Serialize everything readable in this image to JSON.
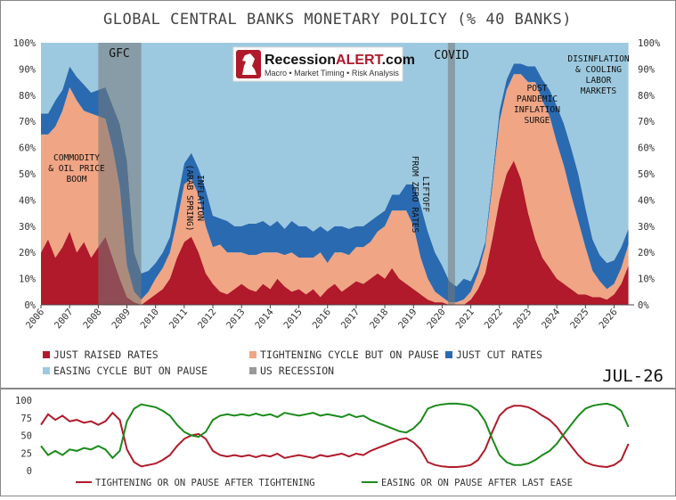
{
  "chart_data": [
    {
      "type": "area",
      "stacked": true,
      "title": "GLOBAL CENTRAL BANKS MONETARY POLICY (% 40 BANKS)",
      "ylim": [
        0,
        100
      ],
      "y_ticks": [
        "0%",
        "10%",
        "20%",
        "30%",
        "40%",
        "50%",
        "60%",
        "70%",
        "80%",
        "90%",
        "100%"
      ],
      "xlim": [
        2006,
        2026.7
      ],
      "x_ticks": [
        "2006",
        "2007",
        "2008",
        "2009",
        "2010",
        "2011",
        "2012",
        "2013",
        "2014",
        "2015",
        "2016",
        "2017",
        "2018",
        "2019",
        "2020",
        "2021",
        "2022",
        "2023",
        "2024",
        "2025",
        "2026"
      ],
      "x": [
        2006.0,
        2006.25,
        2006.5,
        2006.75,
        2007.0,
        2007.25,
        2007.5,
        2007.75,
        2008.0,
        2008.25,
        2008.5,
        2008.75,
        2009.0,
        2009.25,
        2009.5,
        2009.75,
        2010.0,
        2010.25,
        2010.5,
        2010.75,
        2011.0,
        2011.25,
        2011.5,
        2011.75,
        2012.0,
        2012.25,
        2012.5,
        2012.75,
        2013.0,
        2013.25,
        2013.5,
        2013.75,
        2014.0,
        2014.25,
        2014.5,
        2014.75,
        2015.0,
        2015.25,
        2015.5,
        2015.75,
        2016.0,
        2016.25,
        2016.5,
        2016.75,
        2017.0,
        2017.25,
        2017.5,
        2017.75,
        2018.0,
        2018.25,
        2018.5,
        2018.75,
        2019.0,
        2019.25,
        2019.5,
        2019.75,
        2020.0,
        2020.25,
        2020.5,
        2020.75,
        2021.0,
        2021.25,
        2021.5,
        2021.75,
        2022.0,
        2022.25,
        2022.5,
        2022.75,
        2023.0,
        2023.25,
        2023.5,
        2023.75,
        2024.0,
        2024.25,
        2024.5,
        2024.75,
        2025.0,
        2025.25,
        2025.5,
        2025.75,
        2026.0,
        2026.25,
        2026.5
      ],
      "series": [
        {
          "name": "JUST RAISED RATES",
          "color": "#b01a2a",
          "values": [
            20,
            25,
            18,
            22,
            28,
            20,
            24,
            18,
            22,
            26,
            18,
            10,
            3,
            1,
            0,
            2,
            4,
            6,
            10,
            18,
            24,
            26,
            20,
            12,
            8,
            5,
            4,
            6,
            8,
            6,
            5,
            8,
            6,
            10,
            7,
            5,
            6,
            4,
            6,
            3,
            6,
            8,
            5,
            7,
            9,
            8,
            10,
            12,
            10,
            14,
            10,
            8,
            6,
            4,
            2,
            1,
            1,
            0,
            0,
            0,
            2,
            6,
            12,
            25,
            40,
            50,
            55,
            48,
            35,
            25,
            18,
            14,
            10,
            8,
            6,
            4,
            4,
            3,
            3,
            2,
            4,
            8,
            15
          ]
        },
        {
          "name": "TIGHTENING CYCLE BUT ON PAUSE",
          "color": "#f0a584",
          "values": [
            45,
            40,
            50,
            52,
            55,
            58,
            50,
            55,
            50,
            45,
            42,
            35,
            12,
            4,
            2,
            3,
            6,
            8,
            10,
            14,
            22,
            22,
            22,
            18,
            14,
            18,
            16,
            14,
            12,
            13,
            14,
            12,
            14,
            10,
            12,
            15,
            12,
            14,
            12,
            17,
            10,
            12,
            15,
            12,
            13,
            14,
            14,
            16,
            20,
            22,
            26,
            28,
            24,
            14,
            8,
            4,
            2,
            1,
            1,
            2,
            3,
            6,
            10,
            20,
            30,
            32,
            33,
            40,
            50,
            60,
            60,
            58,
            52,
            45,
            36,
            28,
            18,
            10,
            6,
            4,
            4,
            6,
            8
          ]
        },
        {
          "name": "JUST CUT RATES",
          "color": "#2a6ab0",
          "values": [
            8,
            8,
            10,
            8,
            8,
            9,
            10,
            8,
            10,
            12,
            16,
            24,
            40,
            15,
            10,
            8,
            6,
            6,
            6,
            8,
            8,
            10,
            10,
            14,
            12,
            10,
            12,
            10,
            10,
            12,
            12,
            12,
            10,
            12,
            10,
            12,
            12,
            12,
            10,
            10,
            12,
            10,
            10,
            10,
            8,
            8,
            8,
            6,
            6,
            6,
            6,
            10,
            16,
            20,
            18,
            15,
            12,
            8,
            6,
            8,
            4,
            3,
            2,
            3,
            4,
            4,
            4,
            4,
            6,
            6,
            8,
            10,
            14,
            16,
            18,
            18,
            15,
            12,
            10,
            10,
            9,
            8,
            6
          ]
        },
        {
          "name": "EASING CYCLE BUT ON PAUSE",
          "color": "#9cc9df",
          "values": [
            27,
            27,
            22,
            18,
            9,
            13,
            16,
            19,
            18,
            17,
            24,
            31,
            45,
            80,
            88,
            87,
            84,
            80,
            74,
            60,
            46,
            42,
            48,
            56,
            66,
            67,
            68,
            70,
            70,
            69,
            69,
            68,
            70,
            68,
            71,
            68,
            70,
            70,
            72,
            70,
            72,
            70,
            70,
            71,
            70,
            70,
            68,
            66,
            64,
            58,
            58,
            54,
            54,
            62,
            72,
            80,
            85,
            91,
            93,
            90,
            91,
            85,
            76,
            52,
            26,
            14,
            8,
            8,
            9,
            9,
            14,
            18,
            24,
            31,
            40,
            50,
            63,
            75,
            81,
            84,
            83,
            78,
            71
          ]
        }
      ],
      "recessions": [
        [
          2008.0,
          2009.5
        ],
        [
          2020.2,
          2020.45
        ]
      ],
      "annotations": {
        "commodity": [
          "COMMODITY",
          "& OIL PRICE",
          "BOOM"
        ],
        "gfc": "GFC",
        "inflation": [
          "INFLATION",
          "(ARAB SPRING)"
        ],
        "liftoff": [
          "LIFTOFF",
          "FROM ZERO RATES"
        ],
        "covid": "COVID",
        "post_pandemic": [
          "POST",
          "PANDEMIC",
          "INFLATION",
          "SURGE"
        ],
        "disinflation": [
          "DISINFLATION",
          "& COOLING",
          "LABOR",
          "MARKETS"
        ]
      },
      "legend": [
        {
          "label": "JUST RAISED RATES",
          "color": "#b01a2a"
        },
        {
          "label": "TIGHTENING CYCLE BUT ON PAUSE",
          "color": "#f0a584"
        },
        {
          "label": "JUST CUT RATES",
          "color": "#2a6ab0"
        },
        {
          "label": "EASING CYCLE BUT ON PAUSE",
          "color": "#9cc9df"
        },
        {
          "label": "US RECESSION",
          "color": "#999999"
        }
      ],
      "legend_placement": "bottom",
      "stamp": "JUL-26",
      "grid": false
    },
    {
      "type": "line",
      "ylim": [
        0,
        100
      ],
      "y_ticks": [
        "0",
        "25",
        "50",
        "75",
        "100"
      ],
      "xlim": [
        2006,
        2026.7
      ],
      "x": [
        2006.0,
        2006.25,
        2006.5,
        2006.75,
        2007.0,
        2007.25,
        2007.5,
        2007.75,
        2008.0,
        2008.25,
        2008.5,
        2008.75,
        2009.0,
        2009.25,
        2009.5,
        2009.75,
        2010.0,
        2010.25,
        2010.5,
        2010.75,
        2011.0,
        2011.25,
        2011.5,
        2011.75,
        2012.0,
        2012.25,
        2012.5,
        2012.75,
        2013.0,
        2013.25,
        2013.5,
        2013.75,
        2014.0,
        2014.25,
        2014.5,
        2014.75,
        2015.0,
        2015.25,
        2015.5,
        2015.75,
        2016.0,
        2016.25,
        2016.5,
        2016.75,
        2017.0,
        2017.25,
        2017.5,
        2017.75,
        2018.0,
        2018.25,
        2018.5,
        2018.75,
        2019.0,
        2019.25,
        2019.5,
        2019.75,
        2020.0,
        2020.25,
        2020.5,
        2020.75,
        2021.0,
        2021.25,
        2021.5,
        2021.75,
        2022.0,
        2022.25,
        2022.5,
        2022.75,
        2023.0,
        2023.25,
        2023.5,
        2023.75,
        2024.0,
        2024.25,
        2024.5,
        2024.75,
        2025.0,
        2025.25,
        2025.5,
        2025.75,
        2026.0,
        2026.25,
        2026.5
      ],
      "series": [
        {
          "name": "TIGHTENING OR ON PAUSE AFTER TIGHTENING",
          "color": "#b01a2a",
          "values": [
            65,
            80,
            72,
            78,
            70,
            72,
            68,
            70,
            65,
            70,
            82,
            72,
            30,
            12,
            6,
            8,
            10,
            15,
            22,
            35,
            45,
            50,
            52,
            45,
            28,
            22,
            20,
            22,
            20,
            22,
            19,
            22,
            20,
            24,
            18,
            20,
            22,
            20,
            18,
            22,
            20,
            22,
            24,
            20,
            24,
            22,
            28,
            32,
            36,
            40,
            44,
            46,
            40,
            30,
            12,
            8,
            6,
            5,
            5,
            6,
            8,
            15,
            30,
            55,
            78,
            88,
            92,
            92,
            90,
            85,
            78,
            72,
            62,
            48,
            35,
            22,
            12,
            8,
            6,
            5,
            8,
            15,
            38
          ]
        },
        {
          "name": "EASING OR ON PAUSE AFTER LAST EASE",
          "color": "#1a8a1a",
          "values": [
            35,
            22,
            28,
            22,
            30,
            28,
            32,
            30,
            35,
            30,
            18,
            28,
            70,
            88,
            94,
            92,
            90,
            85,
            78,
            65,
            55,
            50,
            48,
            55,
            72,
            78,
            80,
            78,
            80,
            78,
            81,
            78,
            80,
            76,
            82,
            80,
            78,
            80,
            82,
            78,
            80,
            78,
            76,
            80,
            76,
            78,
            72,
            68,
            64,
            60,
            56,
            54,
            60,
            70,
            88,
            92,
            94,
            95,
            95,
            94,
            92,
            85,
            70,
            45,
            22,
            12,
            8,
            8,
            10,
            15,
            22,
            28,
            38,
            52,
            65,
            78,
            88,
            92,
            94,
            95,
            92,
            85,
            62
          ]
        }
      ],
      "legend": [
        {
          "label": "TIGHTENING OR ON PAUSE AFTER TIGHTENING",
          "color": "#b01a2a"
        },
        {
          "label": "EASING OR ON PAUSE AFTER LAST EASE",
          "color": "#1a8a1a"
        }
      ],
      "legend_placement": "bottom",
      "grid": false
    }
  ],
  "logo": {
    "name_black": "Recession",
    "name_red": "ALERT",
    "name_suffix": ".com",
    "tagline": "Macro • Market Timing • Risk Analysis"
  }
}
